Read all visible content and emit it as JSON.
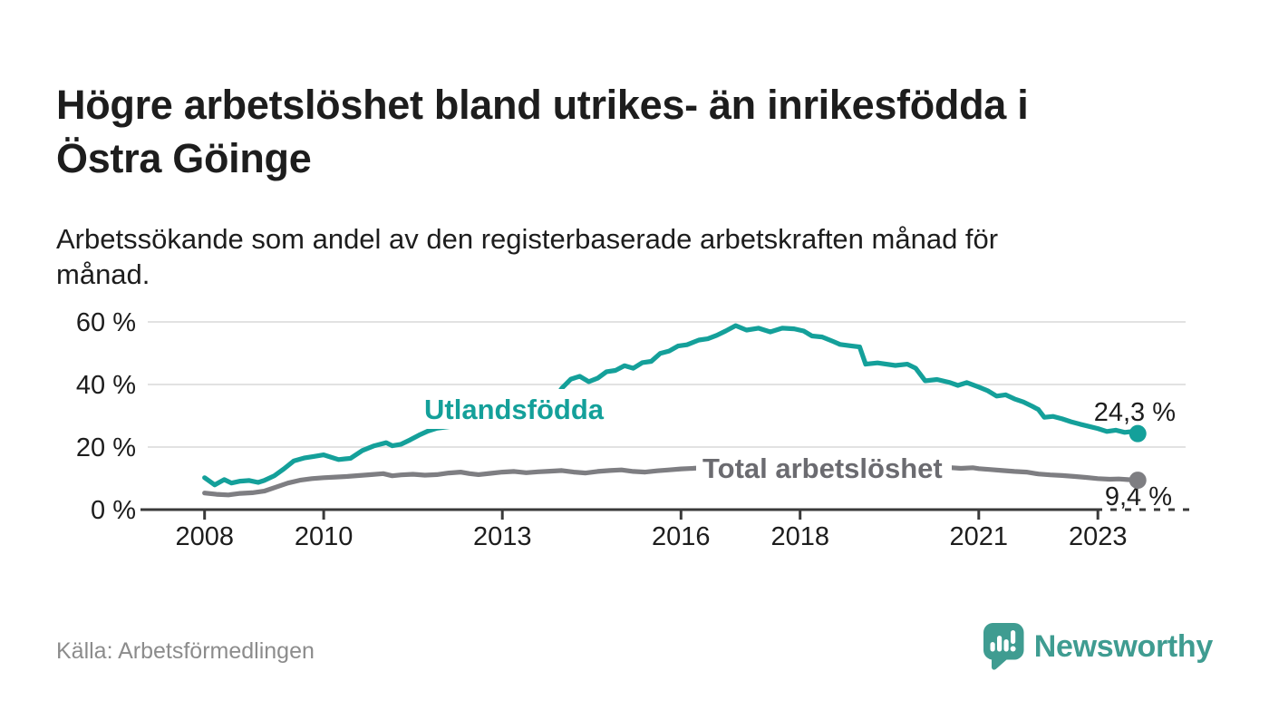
{
  "title": "Högre arbetslöshet bland utrikes- än inrikesfödda i Östra Göinge",
  "title_lines": [
    "Högre arbetslöshet bland utrikes- än inrikesfödda i",
    "Östra Göinge"
  ],
  "subtitle": "Arbetssökande som andel av den registerbaserade arbetskraften månad för månad.",
  "subtitle_lines": [
    "Arbetssökande som andel av den registerbaserade arbetskraften månad för",
    "månad."
  ],
  "source": "Källa: Arbetsförmedlingen",
  "branding": {
    "name": "Newsworthy",
    "logo_icon": "newsworthy-speech-bubble-bar-chart-icon",
    "color": "#3f9c91"
  },
  "colors": {
    "background": "#ffffff",
    "text": "#1d1d1d",
    "gridline": "#d9d9d9",
    "axis": "#3a3a3a",
    "source_text": "#8c8c8c",
    "foreign_born_series": "#14a09a",
    "total_series": "#7e7e82",
    "total_series_label": "#6b6b70"
  },
  "chart_data": {
    "type": "line",
    "unit": "%",
    "x_label": "",
    "y_label": "",
    "grid": "horizontal",
    "x_ticks": [
      2008,
      2010,
      2013,
      2016,
      2018,
      2021,
      2023
    ],
    "y_ticks": [
      {
        "value": 0,
        "label": "0 %"
      },
      {
        "value": 20,
        "label": "20 %"
      },
      {
        "value": 40,
        "label": "40 %"
      },
      {
        "value": 60,
        "label": "60 %"
      }
    ],
    "xlim": [
      2007.9,
      2024.6
    ],
    "ylim": [
      0,
      62
    ],
    "series": [
      {
        "id": "utlandsfodda",
        "name": "Utlandsfödda",
        "color": "#14a09a",
        "label_color": "#14a09a",
        "end_value": 24.3,
        "end_label": "24,3 %",
        "points": [
          [
            2008.0,
            10.2
          ],
          [
            2008.17,
            7.9
          ],
          [
            2008.33,
            9.6
          ],
          [
            2008.45,
            8.5
          ],
          [
            2008.6,
            9.1
          ],
          [
            2008.75,
            9.3
          ],
          [
            2008.9,
            8.7
          ],
          [
            2009.0,
            9.3
          ],
          [
            2009.17,
            10.8
          ],
          [
            2009.33,
            13.0
          ],
          [
            2009.5,
            15.6
          ],
          [
            2009.67,
            16.5
          ],
          [
            2009.83,
            17.0
          ],
          [
            2010.0,
            17.5
          ],
          [
            2010.25,
            16.0
          ],
          [
            2010.45,
            16.4
          ],
          [
            2010.65,
            18.9
          ],
          [
            2010.85,
            20.4
          ],
          [
            2011.05,
            21.4
          ],
          [
            2011.15,
            20.4
          ],
          [
            2011.3,
            20.9
          ],
          [
            2011.45,
            22.3
          ],
          [
            2011.6,
            23.8
          ],
          [
            2011.75,
            25.1
          ],
          [
            2011.9,
            26.0
          ],
          [
            2012.1,
            26.5
          ],
          [
            2012.3,
            27.2
          ],
          [
            2012.5,
            27.8
          ],
          [
            2012.7,
            28.3
          ],
          [
            2012.9,
            29.3
          ],
          [
            2013.1,
            30.8
          ],
          [
            2013.3,
            32.8
          ],
          [
            2013.5,
            35.2
          ],
          [
            2013.7,
            37.4
          ],
          [
            2013.9,
            35.9
          ],
          [
            2014.0,
            38.8
          ],
          [
            2014.15,
            41.7
          ],
          [
            2014.3,
            42.6
          ],
          [
            2014.45,
            40.9
          ],
          [
            2014.6,
            42.0
          ],
          [
            2014.75,
            44.1
          ],
          [
            2014.9,
            44.5
          ],
          [
            2015.05,
            46.0
          ],
          [
            2015.2,
            45.2
          ],
          [
            2015.35,
            47.0
          ],
          [
            2015.5,
            47.4
          ],
          [
            2015.65,
            49.9
          ],
          [
            2015.8,
            50.7
          ],
          [
            2015.95,
            52.3
          ],
          [
            2016.1,
            52.7
          ],
          [
            2016.3,
            54.2
          ],
          [
            2016.45,
            54.6
          ],
          [
            2016.6,
            55.7
          ],
          [
            2016.75,
            57.1
          ],
          [
            2016.92,
            58.8
          ],
          [
            2017.1,
            57.4
          ],
          [
            2017.3,
            58.0
          ],
          [
            2017.5,
            56.8
          ],
          [
            2017.7,
            58.0
          ],
          [
            2017.9,
            57.8
          ],
          [
            2018.06,
            57.1
          ],
          [
            2018.2,
            55.5
          ],
          [
            2018.37,
            55.2
          ],
          [
            2018.55,
            53.8
          ],
          [
            2018.67,
            52.8
          ],
          [
            2018.87,
            52.3
          ],
          [
            2019.0,
            52.0
          ],
          [
            2019.1,
            46.5
          ],
          [
            2019.3,
            46.9
          ],
          [
            2019.6,
            46.1
          ],
          [
            2019.8,
            46.5
          ],
          [
            2019.94,
            45.2
          ],
          [
            2020.1,
            41.2
          ],
          [
            2020.3,
            41.6
          ],
          [
            2020.5,
            40.7
          ],
          [
            2020.65,
            39.7
          ],
          [
            2020.8,
            40.6
          ],
          [
            2021.0,
            39.2
          ],
          [
            2021.15,
            38.0
          ],
          [
            2021.3,
            36.3
          ],
          [
            2021.45,
            36.7
          ],
          [
            2021.6,
            35.4
          ],
          [
            2021.75,
            34.4
          ],
          [
            2021.9,
            33.0
          ],
          [
            2022.0,
            32.0
          ],
          [
            2022.1,
            29.5
          ],
          [
            2022.25,
            29.8
          ],
          [
            2022.4,
            29.0
          ],
          [
            2022.55,
            28.1
          ],
          [
            2022.7,
            27.3
          ],
          [
            2022.85,
            26.6
          ],
          [
            2023.0,
            25.9
          ],
          [
            2023.15,
            25.0
          ],
          [
            2023.3,
            25.4
          ],
          [
            2023.45,
            24.7
          ],
          [
            2023.55,
            24.9
          ],
          [
            2023.67,
            24.3
          ]
        ]
      },
      {
        "id": "total",
        "name": "Total arbetslöshet",
        "color": "#7e7e82",
        "label_color": "#6b6b70",
        "end_value": 9.4,
        "end_label": "9,4 %",
        "points": [
          [
            2008.0,
            5.3
          ],
          [
            2008.2,
            4.9
          ],
          [
            2008.4,
            4.7
          ],
          [
            2008.6,
            5.2
          ],
          [
            2008.8,
            5.4
          ],
          [
            2009.0,
            5.9
          ],
          [
            2009.2,
            7.2
          ],
          [
            2009.4,
            8.5
          ],
          [
            2009.6,
            9.4
          ],
          [
            2009.8,
            9.9
          ],
          [
            2010.0,
            10.2
          ],
          [
            2010.2,
            10.4
          ],
          [
            2010.4,
            10.6
          ],
          [
            2010.6,
            10.9
          ],
          [
            2010.8,
            11.2
          ],
          [
            2011.0,
            11.5
          ],
          [
            2011.15,
            10.8
          ],
          [
            2011.3,
            11.1
          ],
          [
            2011.5,
            11.3
          ],
          [
            2011.7,
            11.0
          ],
          [
            2011.9,
            11.2
          ],
          [
            2012.1,
            11.7
          ],
          [
            2012.3,
            12.0
          ],
          [
            2012.45,
            11.5
          ],
          [
            2012.6,
            11.2
          ],
          [
            2012.8,
            11.6
          ],
          [
            2013.0,
            12.0
          ],
          [
            2013.2,
            12.2
          ],
          [
            2013.4,
            11.8
          ],
          [
            2013.6,
            12.1
          ],
          [
            2013.8,
            12.3
          ],
          [
            2014.0,
            12.5
          ],
          [
            2014.2,
            12.0
          ],
          [
            2014.4,
            11.7
          ],
          [
            2014.6,
            12.2
          ],
          [
            2014.8,
            12.5
          ],
          [
            2015.0,
            12.7
          ],
          [
            2015.2,
            12.2
          ],
          [
            2015.4,
            12.0
          ],
          [
            2015.6,
            12.4
          ],
          [
            2015.8,
            12.7
          ],
          [
            2016.0,
            13.0
          ],
          [
            2016.2,
            13.2
          ],
          [
            2016.35,
            13.4
          ],
          [
            2016.6,
            13.1
          ],
          [
            2016.8,
            13.4
          ],
          [
            2017.0,
            13.6
          ],
          [
            2017.3,
            13.3
          ],
          [
            2017.6,
            13.5
          ],
          [
            2017.9,
            13.2
          ],
          [
            2018.2,
            13.4
          ],
          [
            2018.5,
            13.1
          ],
          [
            2018.8,
            13.3
          ],
          [
            2019.1,
            13.0
          ],
          [
            2019.4,
            13.2
          ],
          [
            2019.7,
            12.9
          ],
          [
            2020.0,
            13.1
          ],
          [
            2020.3,
            13.6
          ],
          [
            2020.55,
            13.4
          ],
          [
            2020.7,
            13.2
          ],
          [
            2020.9,
            13.4
          ],
          [
            2021.0,
            13.1
          ],
          [
            2021.2,
            12.8
          ],
          [
            2021.4,
            12.5
          ],
          [
            2021.6,
            12.2
          ],
          [
            2021.8,
            12.0
          ],
          [
            2022.0,
            11.4
          ],
          [
            2022.2,
            11.1
          ],
          [
            2022.4,
            10.9
          ],
          [
            2022.6,
            10.6
          ],
          [
            2022.8,
            10.3
          ],
          [
            2023.0,
            9.9
          ],
          [
            2023.2,
            9.7
          ],
          [
            2023.35,
            9.8
          ],
          [
            2023.5,
            9.6
          ],
          [
            2023.67,
            9.4
          ]
        ]
      }
    ]
  }
}
